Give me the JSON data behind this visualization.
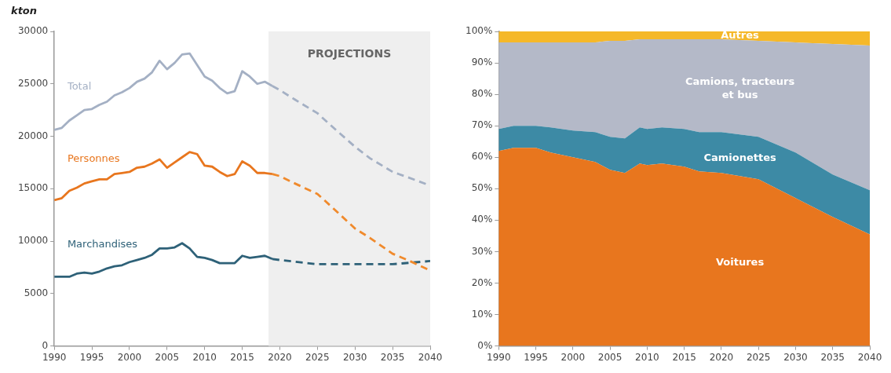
{
  "chart_data": [
    {
      "type": "line",
      "ylabel": "kton",
      "xlim": [
        1990,
        2040
      ],
      "xticks": [
        1990,
        1995,
        2000,
        2005,
        2010,
        2015,
        2020,
        2025,
        2030,
        2035,
        2040
      ],
      "ylim": [
        0,
        30000
      ],
      "yticks": [
        0,
        5000,
        10000,
        15000,
        20000,
        25000,
        30000
      ],
      "grid": false,
      "legend": false,
      "marker": "none",
      "bands": [
        {
          "axis": "x",
          "from": 2018.5,
          "to": 2040,
          "label": "PROJECTIONS",
          "color": "#efefef"
        }
      ],
      "series": [
        {
          "name": "Total",
          "color": "#a4b0c4",
          "line_style": "solid",
          "x": [
            1990,
            1991,
            1992,
            1993,
            1994,
            1995,
            1996,
            1997,
            1998,
            1999,
            2000,
            2001,
            2002,
            2003,
            2004,
            2005,
            2006,
            2007,
            2008,
            2009,
            2010,
            2011,
            2012,
            2013,
            2014,
            2015,
            2016,
            2017,
            2018,
            2019
          ],
          "values": [
            20600,
            20800,
            21500,
            22000,
            22500,
            22600,
            23000,
            23300,
            23900,
            24200,
            24600,
            25200,
            25500,
            26100,
            27200,
            26400,
            27000,
            27800,
            27900,
            26800,
            25700,
            25300,
            24600,
            24100,
            24300,
            26200,
            25700,
            25000,
            25200,
            24800
          ]
        },
        {
          "color": "#a4b0c4",
          "line_style": "dashed",
          "x": [
            2019,
            2020,
            2022,
            2025,
            2027,
            2030,
            2032,
            2035,
            2037,
            2040
          ],
          "values": [
            24800,
            24400,
            23500,
            22200,
            20900,
            19000,
            17900,
            16600,
            16100,
            15300
          ]
        },
        {
          "name": "Personnes",
          "color": "#e8761e",
          "line_style": "solid",
          "x": [
            1990,
            1991,
            1992,
            1993,
            1994,
            1995,
            1996,
            1997,
            1998,
            1999,
            2000,
            2001,
            2002,
            2003,
            2004,
            2005,
            2006,
            2007,
            2008,
            2009,
            2010,
            2011,
            2012,
            2013,
            2014,
            2015,
            2016,
            2017,
            2018,
            2019
          ],
          "values": [
            13900,
            14100,
            14800,
            15100,
            15500,
            15700,
            15900,
            15900,
            16400,
            16500,
            16600,
            17000,
            17100,
            17400,
            17800,
            17000,
            17500,
            18000,
            18500,
            18300,
            17200,
            17100,
            16600,
            16200,
            16400,
            17600,
            17200,
            16500,
            16500,
            16400
          ]
        },
        {
          "color": "#f08a2c",
          "line_style": "dashed",
          "x": [
            2019,
            2020,
            2022,
            2025,
            2027,
            2030,
            2032,
            2035,
            2037,
            2040
          ],
          "values": [
            16400,
            16200,
            15500,
            14500,
            13200,
            11200,
            10300,
            8800,
            8200,
            7200
          ]
        },
        {
          "name": "Marchandises",
          "color": "#2e6178",
          "line_style": "solid",
          "x": [
            1990,
            1991,
            1992,
            1993,
            1994,
            1995,
            1996,
            1997,
            1998,
            1999,
            2000,
            2001,
            2002,
            2003,
            2004,
            2005,
            2006,
            2007,
            2008,
            2009,
            2010,
            2011,
            2012,
            2013,
            2014,
            2015,
            2016,
            2017,
            2018,
            2019
          ],
          "values": [
            6600,
            6600,
            6600,
            6900,
            7000,
            6900,
            7100,
            7400,
            7600,
            7700,
            8000,
            8200,
            8400,
            8700,
            9300,
            9300,
            9400,
            9800,
            9300,
            8500,
            8400,
            8200,
            7900,
            7900,
            7900,
            8600,
            8400,
            8500,
            8600,
            8300
          ]
        },
        {
          "color": "#2e6178",
          "line_style": "dashed",
          "x": [
            2019,
            2020,
            2025,
            2030,
            2035,
            2040
          ],
          "values": [
            8300,
            8200,
            7800,
            7800,
            7800,
            8100
          ]
        }
      ]
    },
    {
      "type": "area",
      "stacked": true,
      "xlim": [
        1990,
        2040
      ],
      "xticks": [
        1990,
        1995,
        2000,
        2005,
        2010,
        2015,
        2020,
        2025,
        2030,
        2035,
        2040
      ],
      "ylim": [
        0,
        100
      ],
      "yticks": [
        {
          "value": 0,
          "label": "0%"
        },
        {
          "value": 10,
          "label": "10%"
        },
        {
          "value": 20,
          "label": "20%"
        },
        {
          "value": 30,
          "label": "30%"
        },
        {
          "value": 40,
          "label": "40%"
        },
        {
          "value": 50,
          "label": "50%"
        },
        {
          "value": 60,
          "label": "60%"
        },
        {
          "value": 70,
          "label": "70%"
        },
        {
          "value": 80,
          "label": "80%"
        },
        {
          "value": 90,
          "label": "90%"
        },
        {
          "value": 100,
          "label": "100%"
        }
      ],
      "grid": false,
      "legend": false,
      "x": [
        1990,
        1992,
        1995,
        1997,
        2000,
        2003,
        2005,
        2007,
        2009,
        2010,
        2012,
        2015,
        2017,
        2020,
        2025,
        2030,
        2035,
        2040
      ],
      "series": [
        {
          "name": "Voitures",
          "color": "#e8761e",
          "values": [
            62,
            63,
            63,
            61.5,
            60,
            58.5,
            56,
            55,
            58,
            57.5,
            58,
            57,
            55.5,
            55,
            53,
            47,
            41,
            35.5
          ]
        },
        {
          "name": "Camionettes",
          "color": "#3d8aa5",
          "values": [
            7,
            7,
            7,
            8,
            8.5,
            9.5,
            10.5,
            11,
            11.5,
            11.5,
            11.5,
            12,
            12.5,
            13,
            13.5,
            14.5,
            13.5,
            14
          ]
        },
        {
          "name": "Camions, tracteurs et bus",
          "color": "#b4b9c8",
          "values": [
            27.5,
            26.5,
            26.5,
            27,
            28,
            28.5,
            30.5,
            31,
            28,
            28.5,
            28,
            28.5,
            29.5,
            29.5,
            30.5,
            35,
            41.5,
            46
          ]
        },
        {
          "name": "Autres",
          "color": "#f5b829",
          "values": [
            3.5,
            3.5,
            3.5,
            3.5,
            3.5,
            3.5,
            3,
            3,
            2.5,
            2.5,
            2.5,
            2.5,
            2.5,
            2.5,
            3,
            3.5,
            4,
            4.5
          ]
        }
      ]
    }
  ]
}
